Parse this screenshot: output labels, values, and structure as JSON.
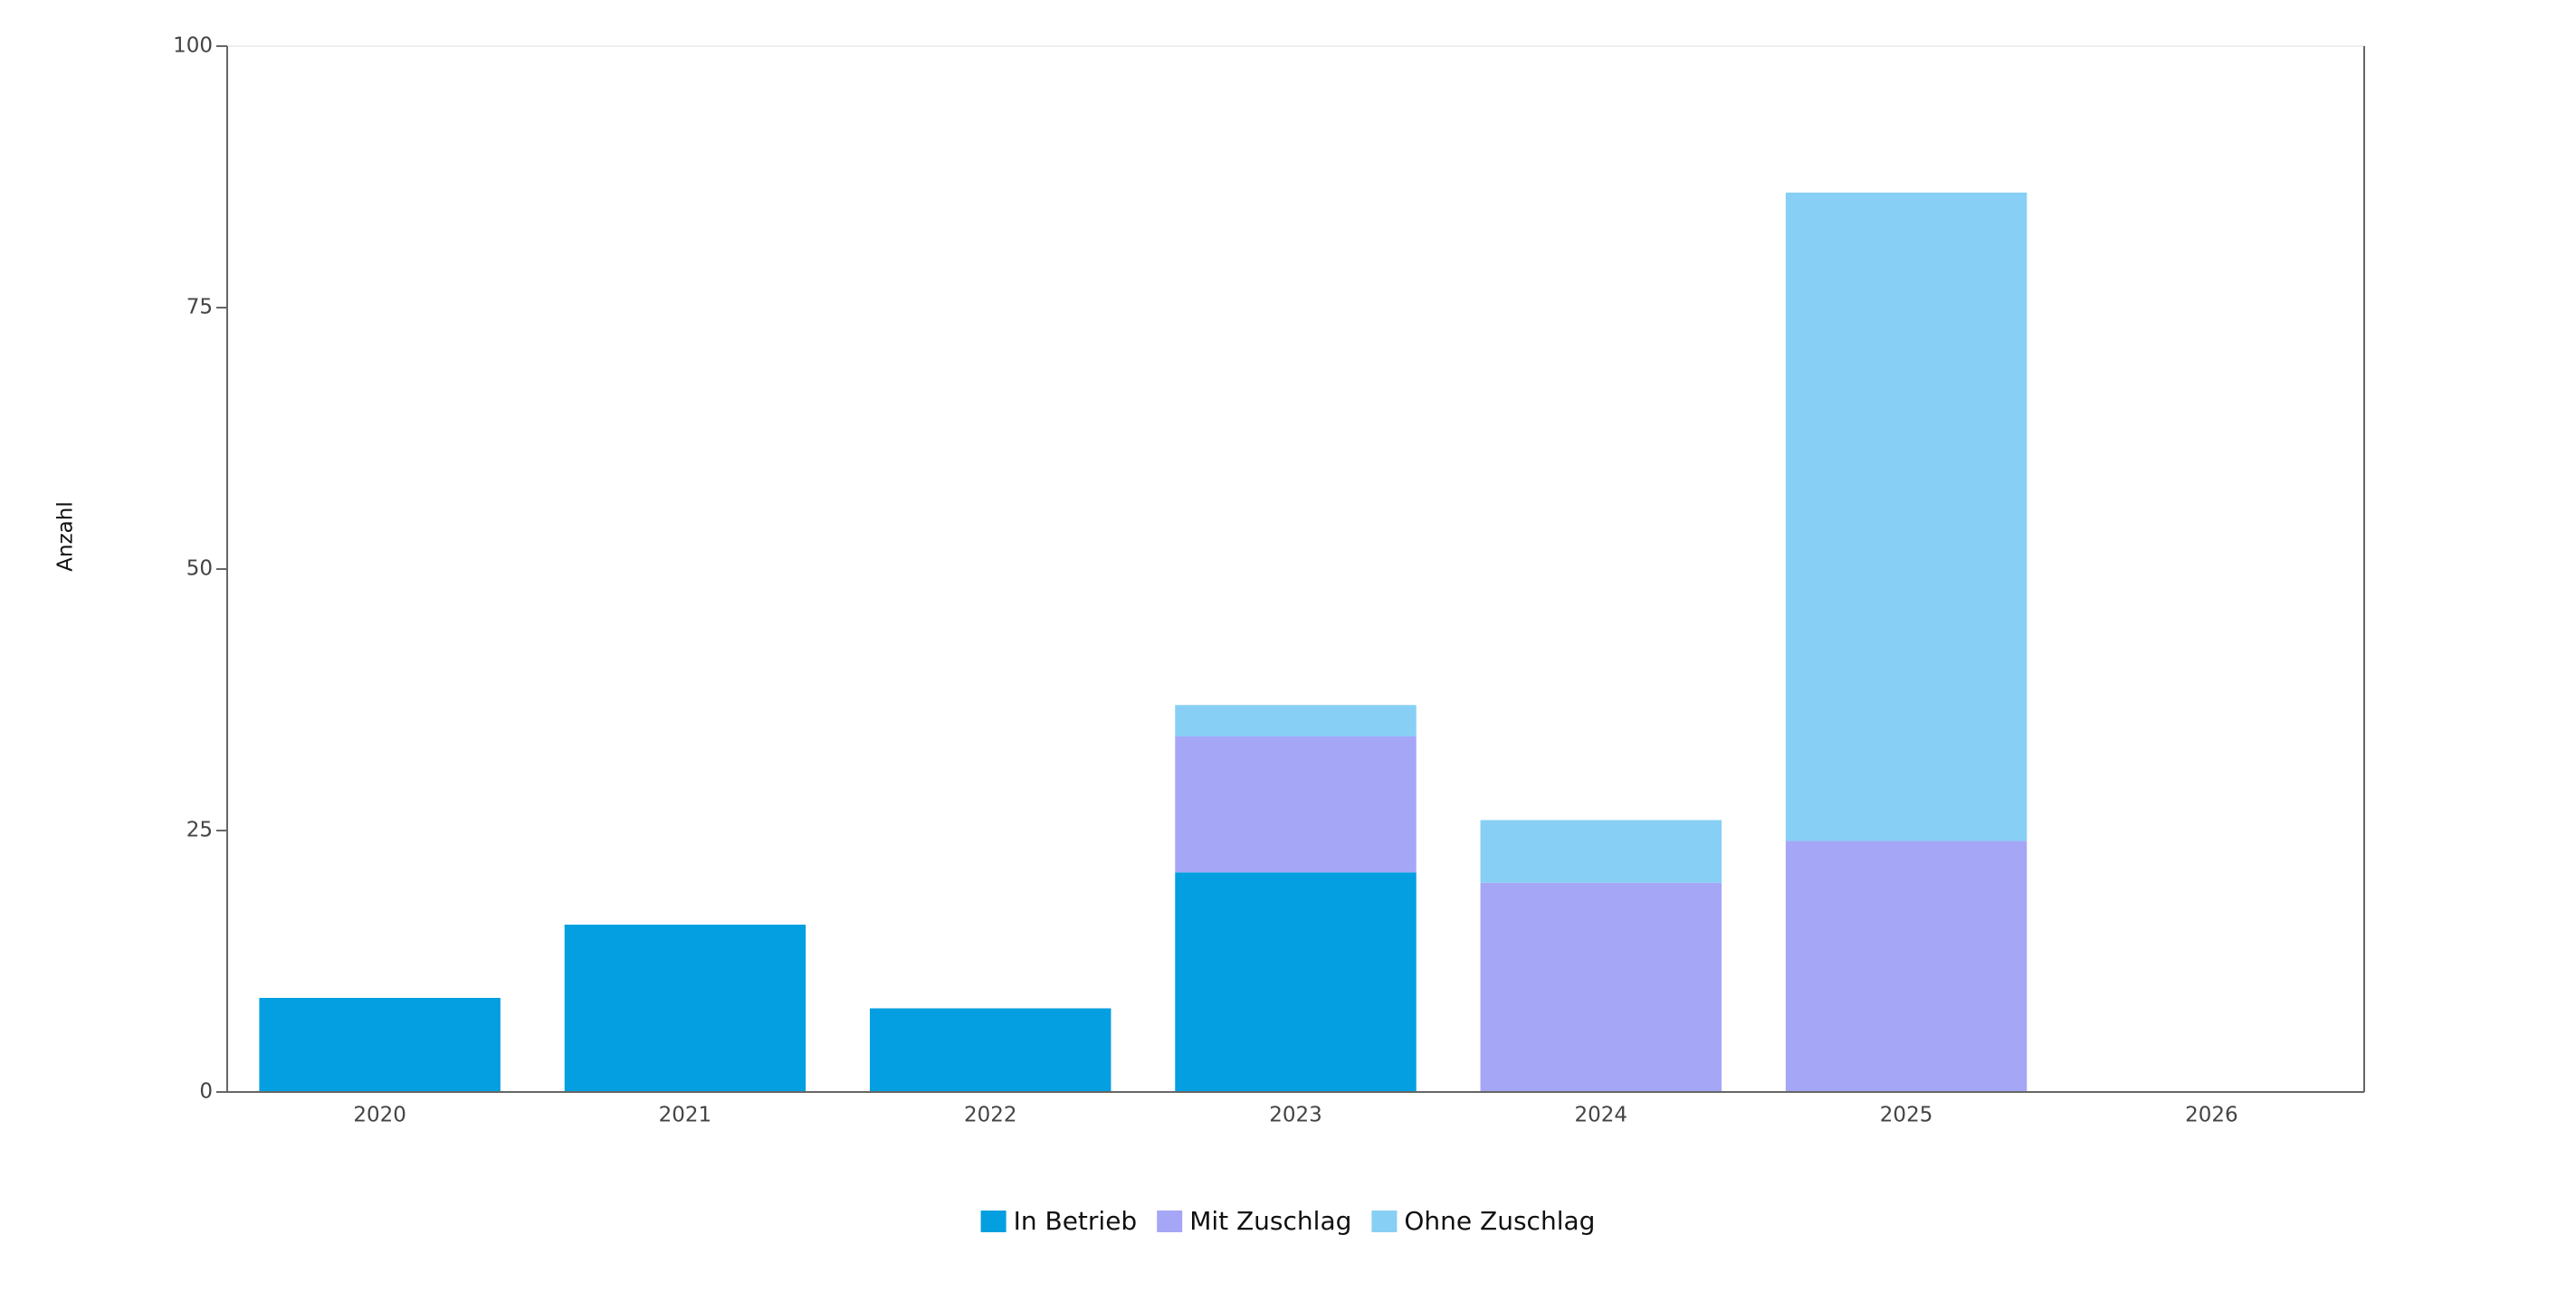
{
  "chart_data": {
    "type": "stacked_bar",
    "y_label": "Anzahl",
    "categories": [
      "2020",
      "2021",
      "2022",
      "2023",
      "2024",
      "2025",
      "2026"
    ],
    "series": [
      {
        "name": "In Betrieb",
        "color": "#039fe0",
        "values": [
          9,
          16,
          8,
          21,
          null,
          null,
          null
        ]
      },
      {
        "name": "Mit Zuschlag",
        "color": "#a5a6f6",
        "values": [
          null,
          null,
          null,
          13,
          20,
          24,
          null
        ]
      },
      {
        "name": "Ohne Zuschlag",
        "color": "#87cff5",
        "values": [
          null,
          null,
          null,
          3,
          6,
          62,
          null
        ]
      }
    ],
    "ylim": [
      0,
      100
    ],
    "yticks": [
      0,
      25,
      50,
      75,
      100
    ],
    "legend": "bottom"
  }
}
